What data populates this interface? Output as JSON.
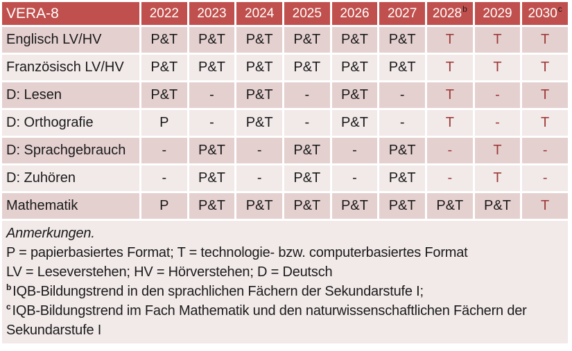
{
  "table": {
    "title": "VERA-8",
    "columns": [
      {
        "label": "2022",
        "sup": ""
      },
      {
        "label": "2023",
        "sup": ""
      },
      {
        "label": "2024",
        "sup": ""
      },
      {
        "label": "2025",
        "sup": ""
      },
      {
        "label": "2026",
        "sup": ""
      },
      {
        "label": "2027",
        "sup": ""
      },
      {
        "label": "2028",
        "sup": "b"
      },
      {
        "label": "2029",
        "sup": ""
      },
      {
        "label": "2030",
        "sup": "c"
      }
    ],
    "rows": [
      {
        "label": "Englisch LV/HV",
        "cells": [
          {
            "v": "P&T",
            "red": false
          },
          {
            "v": "P&T",
            "red": false
          },
          {
            "v": "P&T",
            "red": false
          },
          {
            "v": "P&T",
            "red": false
          },
          {
            "v": "P&T",
            "red": false
          },
          {
            "v": "P&T",
            "red": false
          },
          {
            "v": "T",
            "red": true
          },
          {
            "v": "T",
            "red": true
          },
          {
            "v": "T",
            "red": true
          }
        ]
      },
      {
        "label": "Französisch LV/HV",
        "cells": [
          {
            "v": "P&T",
            "red": false
          },
          {
            "v": "P&T",
            "red": false
          },
          {
            "v": "P&T",
            "red": false
          },
          {
            "v": "P&T",
            "red": false
          },
          {
            "v": "P&T",
            "red": false
          },
          {
            "v": "P&T",
            "red": false
          },
          {
            "v": "T",
            "red": true
          },
          {
            "v": "T",
            "red": true
          },
          {
            "v": "T",
            "red": true
          }
        ]
      },
      {
        "label": "D: Lesen",
        "cells": [
          {
            "v": "P&T",
            "red": false
          },
          {
            "v": "-",
            "red": false
          },
          {
            "v": "P&T",
            "red": false
          },
          {
            "v": "-",
            "red": false
          },
          {
            "v": "P&T",
            "red": false
          },
          {
            "v": "-",
            "red": false
          },
          {
            "v": "T",
            "red": true
          },
          {
            "v": "-",
            "red": true
          },
          {
            "v": "T",
            "red": true
          }
        ]
      },
      {
        "label": "D: Orthografie",
        "cells": [
          {
            "v": "P",
            "red": false
          },
          {
            "v": "-",
            "red": false
          },
          {
            "v": "P&T",
            "red": false
          },
          {
            "v": "-",
            "red": false
          },
          {
            "v": "P&T",
            "red": false
          },
          {
            "v": "-",
            "red": false
          },
          {
            "v": "T",
            "red": true
          },
          {
            "v": "-",
            "red": true
          },
          {
            "v": "T",
            "red": true
          }
        ]
      },
      {
        "label": "D: Sprachgebrauch",
        "cells": [
          {
            "v": "-",
            "red": false
          },
          {
            "v": "P&T",
            "red": false
          },
          {
            "v": "-",
            "red": false
          },
          {
            "v": "P&T",
            "red": false
          },
          {
            "v": "-",
            "red": false
          },
          {
            "v": "P&T",
            "red": false
          },
          {
            "v": "-",
            "red": true
          },
          {
            "v": "T",
            "red": true
          },
          {
            "v": "-",
            "red": true
          }
        ]
      },
      {
        "label": "D: Zuhören",
        "cells": [
          {
            "v": "-",
            "red": false
          },
          {
            "v": "P&T",
            "red": false
          },
          {
            "v": "-",
            "red": false
          },
          {
            "v": "P&T",
            "red": false
          },
          {
            "v": "-",
            "red": false
          },
          {
            "v": "P&T",
            "red": false
          },
          {
            "v": "-",
            "red": true
          },
          {
            "v": "T",
            "red": true
          },
          {
            "v": "-",
            "red": true
          }
        ]
      },
      {
        "label": "Mathematik",
        "cells": [
          {
            "v": "P",
            "red": false
          },
          {
            "v": "P&T",
            "red": false
          },
          {
            "v": "P&T",
            "red": false
          },
          {
            "v": "P&T",
            "red": false
          },
          {
            "v": "P&T",
            "red": false
          },
          {
            "v": "P&T",
            "red": false
          },
          {
            "v": "P&T",
            "red": false
          },
          {
            "v": "P&T",
            "red": false
          },
          {
            "v": "T",
            "red": true
          }
        ]
      }
    ]
  },
  "notes": {
    "heading": "Anmerkungen.",
    "formats": "P = papierbasiertes Format; T = technologie- bzw. computerbasiertes Format",
    "abbreviations": "LV = Leseverstehen; HV = Hörverstehen; D = Deutsch",
    "note_b_sup": "b",
    "note_b_text": "IQB-Bildungstrend in den sprachlichen Fächern der Sekundarstufe I;",
    "note_c_sup": "c",
    "note_c_text": "IQB-Bildungstrend im Fach Mathematik und den naturwissenschaftlichen Fächern der Sekundarstufe I"
  },
  "colors": {
    "header_bg": "#C0504D",
    "header_text": "#FFFFFF",
    "row_dark": "#E5D0D0",
    "row_light": "#F2E9E9",
    "accent_text": "#9C3A36",
    "body_text": "#1A1A1A"
  }
}
